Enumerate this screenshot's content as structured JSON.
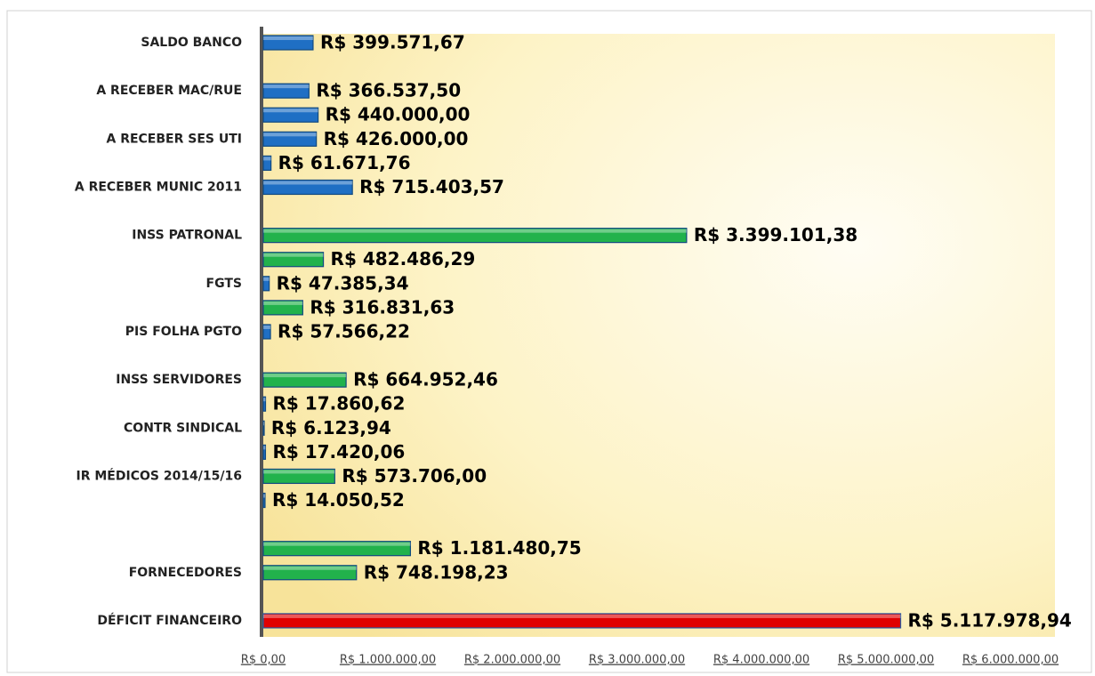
{
  "chart_data": {
    "type": "bar",
    "orientation": "horizontal",
    "categories": [
      "SALDO BANCO",
      null,
      "A RECEBER MAC/RUE",
      null,
      "A RECEBER SES UTI",
      null,
      "A RECEBER MUNIC 2011",
      null,
      "INSS PATRONAL",
      null,
      "FGTS",
      null,
      "PIS FOLHA PGTO",
      null,
      "INSS SERVIDORES",
      null,
      "CONTR SINDICAL",
      null,
      "IR MÉDICOS 2014/15/16",
      null,
      null,
      null,
      "FORNECEDORES",
      null,
      "DÉFICIT FINANCEIRO"
    ],
    "values": [
      399571.67,
      null,
      366537.5,
      440000.0,
      426000.0,
      61671.76,
      715403.57,
      null,
      3399101.38,
      482486.29,
      47385.34,
      316831.63,
      57566.22,
      null,
      664952.46,
      17860.62,
      6123.94,
      17420.06,
      573706.0,
      14050.52,
      null,
      1181480.75,
      748198.23,
      null,
      5117978.94
    ],
    "value_labels": [
      "R$ 399.571,67",
      null,
      "R$ 366.537,50",
      "R$ 440.000,00",
      "R$ 426.000,00",
      "R$ 61.671,76",
      "R$ 715.403,57",
      null,
      "R$ 3.399.101,38",
      "R$ 482.486,29",
      "R$ 47.385,34",
      "R$ 316.831,63",
      "R$ 57.566,22",
      null,
      "R$ 664.952,46",
      "R$ 17.860,62",
      "R$ 6.123,94",
      "R$ 17.420,06",
      "R$ 573.706,00",
      "R$ 14.050,52",
      null,
      "R$ 1.181.480,75",
      "R$ 748.198,23",
      null,
      "R$ 5.117.978,94"
    ],
    "colors": [
      "#1f6fc4",
      null,
      "#1f6fc4",
      "#1f6fc4",
      "#1f6fc4",
      "#1f6fc4",
      "#1f6fc4",
      null,
      "#22b24c",
      "#22b24c",
      "#1f6fc4",
      "#22b24c",
      "#1f6fc4",
      null,
      "#22b24c",
      "#1f6fc4",
      "#1f6fc4",
      "#1f6fc4",
      "#22b24c",
      "#1f6fc4",
      null,
      "#22b24c",
      "#22b24c",
      null,
      "#e00000"
    ],
    "xlim": [
      0,
      6000000
    ],
    "xticks": [
      {
        "value": 0,
        "label": "R$ 0,00"
      },
      {
        "value": 1000000,
        "label": "R$ 1.000.000,00"
      },
      {
        "value": 2000000,
        "label": "R$ 2.000.000,00"
      },
      {
        "value": 3000000,
        "label": "R$ 3.000.000,00"
      },
      {
        "value": 4000000,
        "label": "R$ 4.000.000,00"
      },
      {
        "value": 5000000,
        "label": "R$ 5.000.000,00"
      },
      {
        "value": 6000000,
        "label": "R$ 6.000.000,00"
      }
    ]
  }
}
